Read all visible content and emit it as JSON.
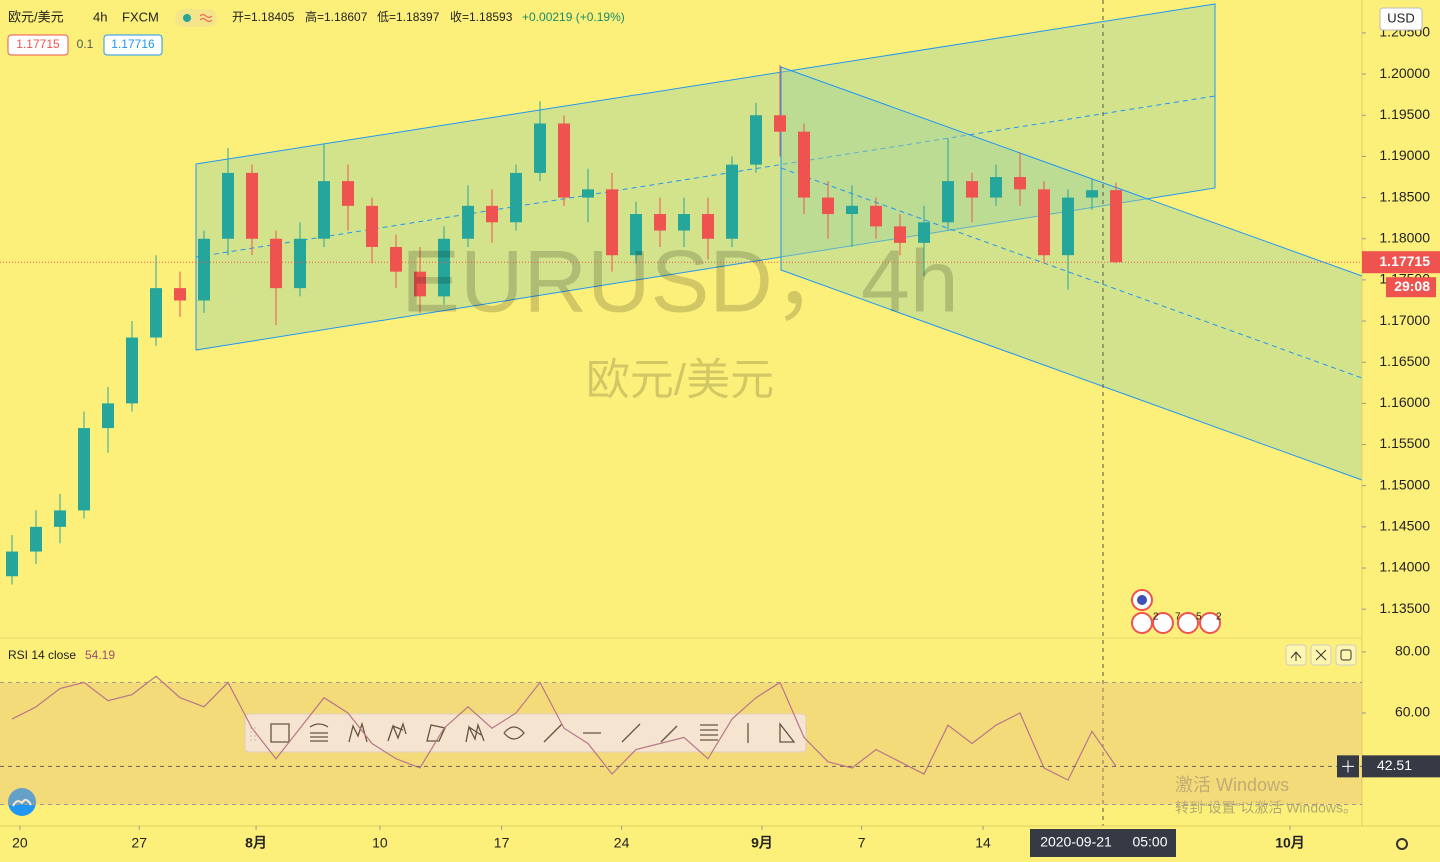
{
  "header": {
    "symbol": "欧元/美元",
    "interval": "4h",
    "exchange": "FXCM",
    "ohlc": [
      "开=1.18405",
      "高=1.18607",
      "低=1.18397",
      "收=1.18593",
      "+0.00219 (+0.19%)"
    ],
    "sell": "1.17715",
    "spread": "0.1",
    "buy": "1.17716"
  },
  "watermark": {
    "ticker": "EURUSD，4h",
    "name": "欧元/美元"
  },
  "events": [
    "2",
    "7",
    "5",
    "2"
  ],
  "chart_data": [
    {
      "type": "candlestick",
      "currency": "USD",
      "up_color": "#26a69a",
      "down_color": "#ef5350",
      "x": [
        0.5,
        1.5,
        2.5,
        3.5,
        4.5,
        5.5,
        6.5,
        7.5,
        8.5,
        9.5,
        10.5,
        11.5,
        12.5,
        13.5,
        14.5,
        15.5,
        16.5,
        17.5,
        18.5,
        19.5,
        20.5,
        21.5,
        22.5,
        23.5,
        24.5,
        25.5,
        26.5,
        27.5,
        28.5,
        29.5,
        30.5,
        31.5,
        32.5,
        33.5,
        34.5,
        35.5,
        36.5,
        37.5,
        38.5,
        39.5,
        40.5,
        41.5,
        42.5,
        43.5,
        44.5,
        45.5,
        46.5
      ],
      "open": [
        1.139,
        1.142,
        1.145,
        1.147,
        1.157,
        1.16,
        1.168,
        1.174,
        1.1725,
        1.18,
        1.188,
        1.18,
        1.174,
        1.18,
        1.187,
        1.184,
        1.179,
        1.176,
        1.173,
        1.18,
        1.184,
        1.182,
        1.188,
        1.194,
        1.185,
        1.186,
        1.178,
        1.183,
        1.181,
        1.183,
        1.18,
        1.189,
        1.195,
        1.193,
        1.185,
        1.183,
        1.184,
        1.1815,
        1.1795,
        1.182,
        1.187,
        1.185,
        1.1875,
        1.186,
        1.178,
        1.185,
        1.1859
      ],
      "high": [
        1.144,
        1.147,
        1.149,
        1.159,
        1.162,
        1.17,
        1.178,
        1.176,
        1.181,
        1.191,
        1.189,
        1.181,
        1.182,
        1.1915,
        1.189,
        1.185,
        1.1805,
        1.179,
        1.1815,
        1.1865,
        1.186,
        1.189,
        1.1967,
        1.195,
        1.1885,
        1.188,
        1.1845,
        1.185,
        1.185,
        1.185,
        1.19,
        1.1965,
        1.2011,
        1.194,
        1.187,
        1.1865,
        1.185,
        1.183,
        1.184,
        1.1922,
        1.188,
        1.189,
        1.1905,
        1.187,
        1.186,
        1.1873,
        1.1868
      ],
      "low": [
        1.138,
        1.1405,
        1.143,
        1.146,
        1.154,
        1.159,
        1.167,
        1.1705,
        1.171,
        1.178,
        1.178,
        1.1695,
        1.173,
        1.179,
        1.181,
        1.177,
        1.174,
        1.171,
        1.172,
        1.179,
        1.1795,
        1.181,
        1.187,
        1.184,
        1.182,
        1.176,
        1.177,
        1.179,
        1.179,
        1.1775,
        1.179,
        1.188,
        1.19,
        1.183,
        1.18,
        1.179,
        1.18,
        1.178,
        1.1755,
        1.181,
        1.182,
        1.184,
        1.184,
        1.177,
        1.1738,
        1.1835,
        1.177
      ],
      "close": [
        1.142,
        1.145,
        1.147,
        1.157,
        1.16,
        1.168,
        1.174,
        1.1725,
        1.18,
        1.188,
        1.18,
        1.174,
        1.18,
        1.187,
        1.184,
        1.179,
        1.176,
        1.173,
        1.18,
        1.184,
        1.182,
        1.188,
        1.194,
        1.185,
        1.186,
        1.178,
        1.183,
        1.181,
        1.183,
        1.18,
        1.189,
        1.195,
        1.193,
        1.185,
        1.183,
        1.184,
        1.1815,
        1.1795,
        1.182,
        1.187,
        1.185,
        1.1875,
        1.186,
        1.178,
        1.185,
        1.1859,
        1.17715
      ],
      "xlim": [
        0,
        56.75
      ],
      "xticks": [
        {
          "value": 0.83,
          "label": "20"
        },
        {
          "value": 5.8,
          "label": "27"
        },
        {
          "value": 10.67,
          "label": "8月"
        },
        {
          "value": 15.83,
          "label": "10"
        },
        {
          "value": 20.9,
          "label": "17"
        },
        {
          "value": 25.9,
          "label": "24"
        },
        {
          "value": 31.75,
          "label": "9月"
        },
        {
          "value": 35.9,
          "label": "7"
        },
        {
          "value": 40.96,
          "label": "14"
        },
        {
          "value": 53.75,
          "label": "10月"
        }
      ],
      "ylim": [
        1.1315,
        1.209
      ],
      "yticks": [
        {
          "value": 1.135,
          "label": "1.13500"
        },
        {
          "value": 1.14,
          "label": "1.14000"
        },
        {
          "value": 1.145,
          "label": "1.14500"
        },
        {
          "value": 1.15,
          "label": "1.15000"
        },
        {
          "value": 1.155,
          "label": "1.15500"
        },
        {
          "value": 1.16,
          "label": "1.16000"
        },
        {
          "value": 1.165,
          "label": "1.16500"
        },
        {
          "value": 1.17,
          "label": "1.17000"
        },
        {
          "value": 1.175,
          "label": "1.17500"
        },
        {
          "value": 1.18,
          "label": "1.18000"
        },
        {
          "value": 1.185,
          "label": "1.18500"
        },
        {
          "value": 1.19,
          "label": "1.19000"
        },
        {
          "value": 1.195,
          "label": "1.19500"
        },
        {
          "value": 1.2,
          "label": "1.20000"
        },
        {
          "value": 1.205,
          "label": "1.20500"
        }
      ],
      "last_price": 1.17715,
      "countdown": "29:08"
    },
    {
      "type": "line",
      "title": "RSI 14 close",
      "value_label": "54.19",
      "color": "#b9768a",
      "values": [
        58,
        62,
        68,
        70,
        64,
        66,
        72,
        65,
        62,
        70,
        55,
        45,
        55,
        65,
        60,
        50,
        45,
        42,
        55,
        62,
        55,
        60,
        70,
        55,
        50,
        40,
        48,
        50,
        52,
        45,
        58,
        65,
        70,
        52,
        44,
        42,
        48,
        44,
        40,
        56,
        50,
        56,
        60,
        42,
        38,
        54,
        42.51
      ],
      "ylim": [
        23.3,
        83.9
      ],
      "yticks": [
        {
          "value": 80,
          "label": "80.00"
        },
        {
          "value": 60,
          "label": "60.00"
        }
      ],
      "band": [
        30,
        70
      ],
      "last_value": 42.51
    }
  ],
  "crosshair": {
    "date": "2020-09-21",
    "time": "05:00"
  },
  "windows": {
    "line1": "激活 Windows",
    "line2": "转到“设置”以激活 Windows。"
  }
}
